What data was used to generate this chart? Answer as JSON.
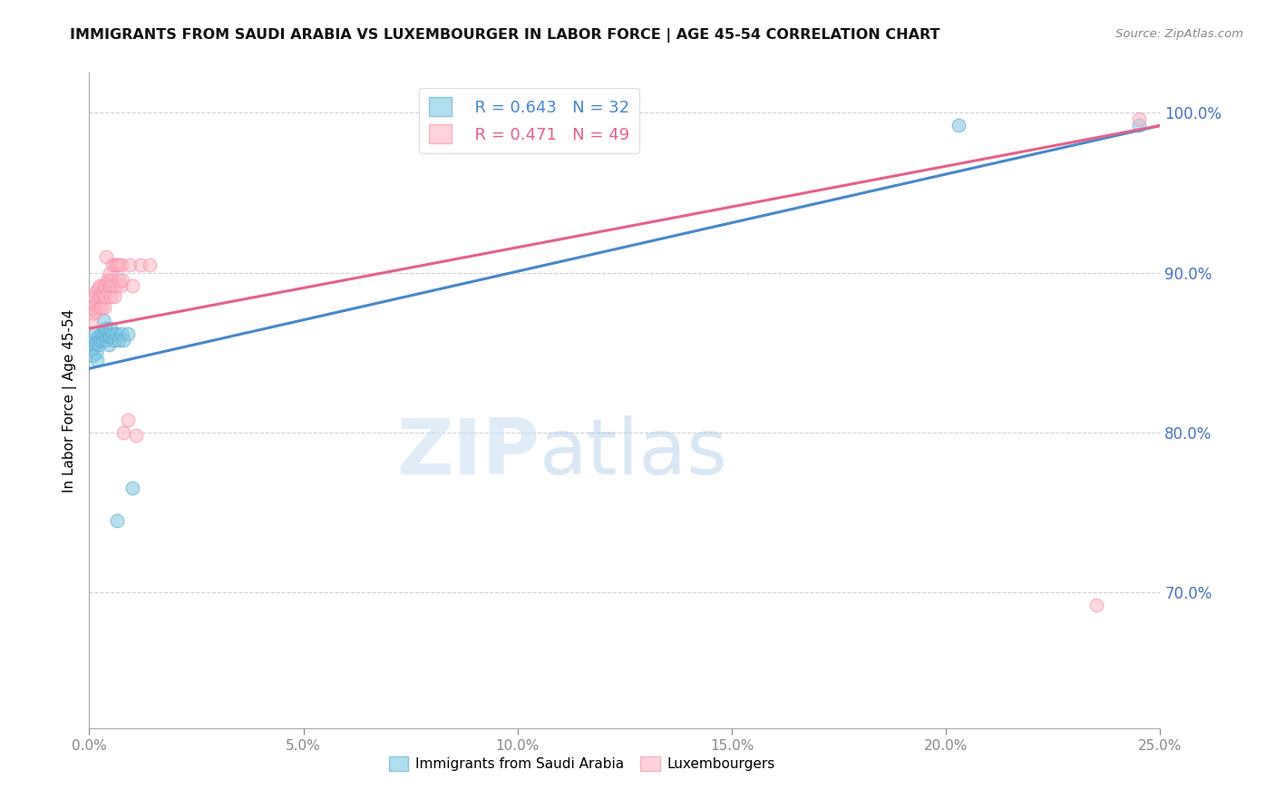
{
  "title": "IMMIGRANTS FROM SAUDI ARABIA VS LUXEMBOURGER IN LABOR FORCE | AGE 45-54 CORRELATION CHART",
  "source": "Source: ZipAtlas.com",
  "ylabel": "In Labor Force | Age 45-54",
  "ytick_values": [
    0.7,
    0.8,
    0.9,
    1.0
  ],
  "ytick_labels": [
    "70.0%",
    "80.0%",
    "90.0%",
    "100.0%"
  ],
  "xlim": [
    0.0,
    0.25
  ],
  "ylim": [
    0.615,
    1.025
  ],
  "xtick_values": [
    0.0,
    0.05,
    0.1,
    0.15,
    0.2,
    0.25
  ],
  "xtick_labels": [
    "0.0%",
    "5.0%",
    "10.0%",
    "15.0%",
    "20.0%",
    "25.0%"
  ],
  "blue_color": "#7ec8e3",
  "pink_color": "#ffb6c1",
  "blue_edge_color": "#5aabcf",
  "pink_edge_color": "#f48fb1",
  "blue_line_color": "#4488cc",
  "pink_line_color": "#e8608a",
  "legend_R_blue": "R = 0.643",
  "legend_N_blue": "N = 32",
  "legend_R_pink": "R = 0.471",
  "legend_N_pink": "N = 49",
  "blue_scatter_x": [
    0.0005,
    0.0008,
    0.001,
    0.0012,
    0.0013,
    0.0015,
    0.0015,
    0.0018,
    0.002,
    0.0022,
    0.0025,
    0.0028,
    0.003,
    0.0032,
    0.0035,
    0.0038,
    0.004,
    0.0043,
    0.0045,
    0.0048,
    0.005,
    0.0055,
    0.0058,
    0.0062,
    0.0065,
    0.007,
    0.0075,
    0.008,
    0.009,
    0.01,
    0.203,
    0.245
  ],
  "blue_scatter_y": [
    0.852,
    0.848,
    0.858,
    0.855,
    0.862,
    0.85,
    0.856,
    0.845,
    0.86,
    0.855,
    0.858,
    0.862,
    0.858,
    0.87,
    0.862,
    0.865,
    0.858,
    0.862,
    0.855,
    0.86,
    0.865,
    0.862,
    0.858,
    0.862,
    0.745,
    0.858,
    0.862,
    0.858,
    0.862,
    0.765,
    0.992,
    0.992
  ],
  "pink_scatter_x": [
    0.0005,
    0.0007,
    0.0009,
    0.001,
    0.0012,
    0.0013,
    0.0015,
    0.0016,
    0.0018,
    0.002,
    0.0022,
    0.0024,
    0.0025,
    0.0027,
    0.0028,
    0.003,
    0.0032,
    0.0034,
    0.0035,
    0.0037,
    0.0038,
    0.004,
    0.0042,
    0.0044,
    0.0045,
    0.0047,
    0.0048,
    0.005,
    0.0052,
    0.0054,
    0.0055,
    0.0058,
    0.006,
    0.0063,
    0.0065,
    0.0068,
    0.007,
    0.0073,
    0.0075,
    0.0078,
    0.008,
    0.009,
    0.0095,
    0.01,
    0.011,
    0.012,
    0.014,
    0.235,
    0.245
  ],
  "pink_scatter_y": [
    0.87,
    0.878,
    0.882,
    0.875,
    0.885,
    0.88,
    0.888,
    0.876,
    0.882,
    0.89,
    0.885,
    0.878,
    0.892,
    0.885,
    0.878,
    0.888,
    0.892,
    0.885,
    0.878,
    0.892,
    0.885,
    0.91,
    0.895,
    0.888,
    0.895,
    0.9,
    0.892,
    0.885,
    0.895,
    0.892,
    0.905,
    0.885,
    0.905,
    0.892,
    0.905,
    0.895,
    0.905,
    0.892,
    0.905,
    0.895,
    0.8,
    0.808,
    0.905,
    0.892,
    0.798,
    0.905,
    0.905,
    0.692,
    0.996
  ],
  "watermark_zip": "ZIP",
  "watermark_atlas": "atlas",
  "background_color": "#ffffff",
  "grid_color": "#cccccc",
  "blue_line_x0": 0.0,
  "blue_line_y0": 0.84,
  "blue_line_x1": 0.25,
  "blue_line_y1": 0.992,
  "pink_line_x0": 0.0,
  "pink_line_y0": 0.865,
  "pink_line_x1": 0.25,
  "pink_line_y1": 0.992
}
